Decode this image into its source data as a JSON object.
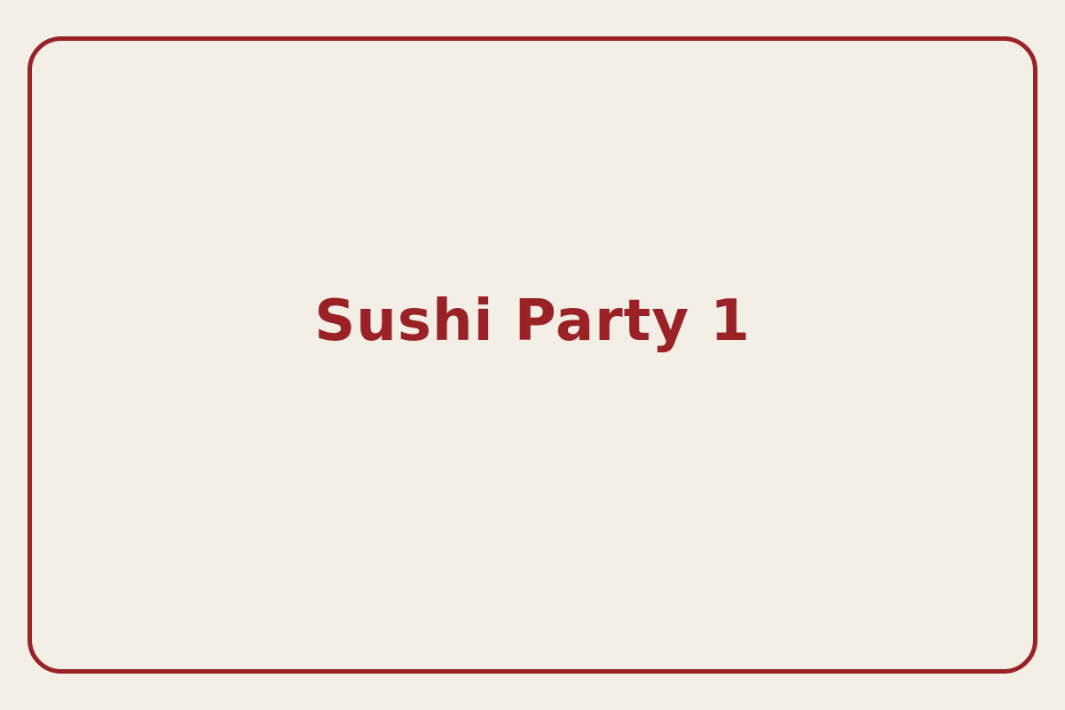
{
  "card": {
    "title": "Sushi Party 1"
  },
  "colors": {
    "background": "#f3efe7",
    "accent": "#9a2226"
  }
}
